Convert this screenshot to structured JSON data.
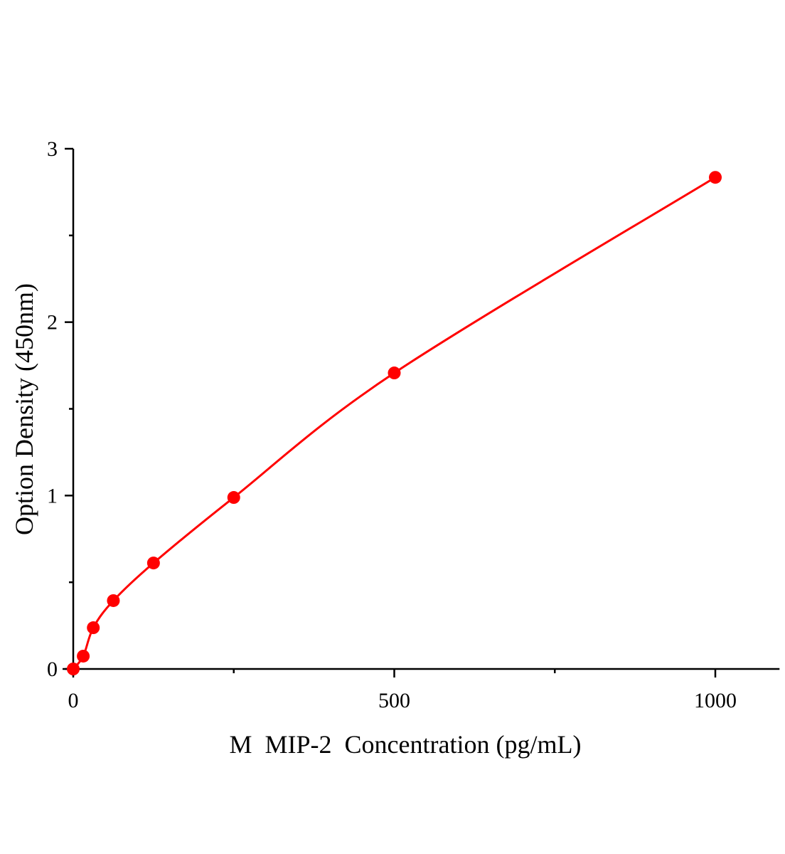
{
  "chart_data": {
    "type": "scatter",
    "title": "",
    "xlabel": "M  MIP-2  Concentration (pg/mL)",
    "ylabel": "Option Density (450nm)",
    "xlim": [
      0,
      1100
    ],
    "ylim": [
      0,
      3
    ],
    "x_ticks": [
      "0",
      "500",
      "1000"
    ],
    "x_tick_values": [
      0,
      500,
      1000
    ],
    "x_minor_ticks": [
      250,
      750
    ],
    "y_ticks": [
      "0",
      "1",
      "2",
      "3"
    ],
    "y_tick_values": [
      0,
      1,
      2,
      3
    ],
    "y_minor_ticks": [
      0.5,
      1.5,
      2.5
    ],
    "grid": false,
    "series": [
      {
        "x": [
          0,
          15.6,
          31.25,
          62.5,
          125,
          250,
          500,
          1000
        ],
        "y": [
          0,
          0.074,
          0.238,
          0.394,
          0.611,
          0.989,
          1.707,
          2.835
        ],
        "color": "#ff0000",
        "marker": "circle",
        "fit_line": true
      }
    ]
  }
}
